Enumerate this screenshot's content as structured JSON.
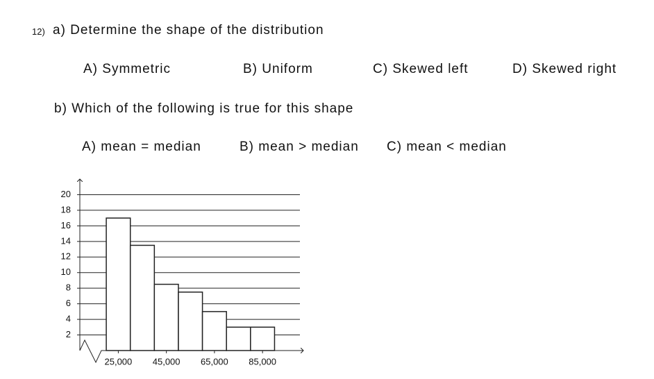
{
  "question_number": "12)",
  "part_a": {
    "prompt": "a) Determine the shape of the distribution",
    "options": [
      "A) Symmetric",
      "B) Uniform",
      "C) Skewed left",
      "D) Skewed right"
    ]
  },
  "part_b": {
    "prompt": "b) Which of the following is true for this shape",
    "options": [
      "A) mean = median",
      "B) mean > median",
      "C) mean < median"
    ]
  },
  "chart_data": {
    "type": "histogram",
    "bins": [
      20000,
      30000,
      40000,
      50000,
      60000,
      70000,
      80000,
      90000
    ],
    "values": [
      17,
      13.5,
      8.5,
      7.5,
      5,
      3,
      3
    ],
    "color": "#ffffff",
    "ylim": [
      0,
      22
    ],
    "yticks": [
      2,
      4,
      6,
      8,
      10,
      12,
      14,
      16,
      18,
      20
    ],
    "xlim": [
      9000,
      102000
    ],
    "xticks": [
      {
        "value": 25000,
        "label": "25,000"
      },
      {
        "value": 45000,
        "label": "45,000"
      },
      {
        "value": 65000,
        "label": "65,000"
      },
      {
        "value": 85000,
        "label": "85,000"
      }
    ],
    "grid": true
  }
}
